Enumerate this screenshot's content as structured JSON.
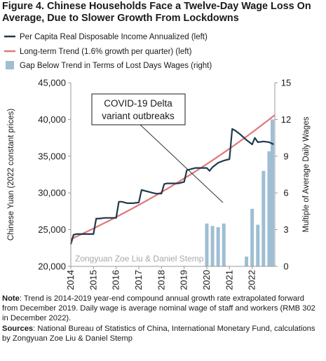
{
  "title": "Figure 4. Chinese Households Face a Twelve-Day Wage Loss On Average, Due to Slower Growth From Lockdowns",
  "chart_data": {
    "type": "line",
    "x_ticks": [
      "2014",
      "2015",
      "2016",
      "2017",
      "2018",
      "2019",
      "2020",
      "2021",
      "2022"
    ],
    "xlim": [
      2014.0,
      2023.0
    ],
    "ylabel_left": "Chinese Yuan (2022 constant prices)",
    "ylabel_right": "Multiple of Average  Daily Wages",
    "ylim_left": [
      20000,
      45000
    ],
    "ylim_right": [
      0,
      15
    ],
    "yticks_left": [
      "20,000",
      "25,000",
      "30,000",
      "35,000",
      "40,000",
      "45,000"
    ],
    "yticks_right": [
      "0",
      "3",
      "6",
      "9",
      "12",
      "15"
    ],
    "legend_position": "top-left, above plot",
    "grid": false,
    "series": [
      {
        "name": "Per Capita Real Disposable Income Annualized (left)",
        "kind": "line",
        "axis": "left",
        "color": "#1f3a4d",
        "x": [
          2014.0,
          2014.12,
          2014.25,
          2014.5,
          2014.75,
          2015.0,
          2015.12,
          2015.25,
          2015.5,
          2015.75,
          2016.0,
          2016.12,
          2016.25,
          2016.5,
          2016.75,
          2017.0,
          2017.12,
          2017.25,
          2017.5,
          2017.75,
          2018.0,
          2018.12,
          2018.25,
          2018.5,
          2018.75,
          2019.0,
          2019.12,
          2019.25,
          2019.5,
          2019.75,
          2020.0,
          2020.12,
          2020.25,
          2020.5,
          2020.75,
          2021.0,
          2021.12,
          2021.25,
          2021.5,
          2021.75,
          2022.0,
          2022.12,
          2022.25,
          2022.5,
          2022.75,
          2022.95
        ],
        "y": [
          23000,
          24300,
          24400,
          24400,
          24400,
          24400,
          26500,
          26500,
          26600,
          26600,
          26600,
          28800,
          28800,
          28600,
          28600,
          28700,
          30400,
          30300,
          30100,
          29900,
          29900,
          31200,
          31300,
          31300,
          31300,
          31500,
          33100,
          33200,
          33400,
          33400,
          33400,
          33000,
          33500,
          34100,
          34400,
          34600,
          38700,
          38500,
          37900,
          37200,
          36600,
          37500,
          36900,
          37000,
          36900,
          36600
        ]
      },
      {
        "name": "Long-term Trend (1.6% growth per quarter) (left)",
        "kind": "line",
        "axis": "left",
        "color": "#e07777",
        "x": [
          2014.0,
          2023.0
        ],
        "y": [
          23700,
          40600
        ],
        "growth": "exponential"
      },
      {
        "name": "Gap Below Trend in Terms of Lost Days Wages (right)",
        "kind": "bar",
        "axis": "right",
        "color": "#9ebed3",
        "x": [
          2020.0,
          2020.25,
          2020.5,
          2020.75,
          2021.75,
          2022.0,
          2022.25,
          2022.5,
          2022.75,
          2023.0
        ],
        "values": [
          3.5,
          3.3,
          3.2,
          3.5,
          0.8,
          4.7,
          3.4,
          7.8,
          9.4,
          12.0
        ]
      }
    ],
    "annotations": [
      {
        "text_lines": [
          "COVID-19 Delta",
          "variant outbreaks"
        ]
      },
      {
        "text": "Zongyuan Zoe Liu & Daniel Stemp"
      }
    ]
  },
  "notes": {
    "note_label": "Note",
    "note_text": ": Trend is 2014-2019 year-end compound annual growth rate extrapolated forward from December 2019. Daily wage is average nominal wage of staff and workers (RMB 302 in December 2022).",
    "sources_label": "Sources",
    "sources_text": ": National Bureau of Statistics of China, International Monetary Fund, calculations by Zongyuan Zoe Liu & Daniel Stemp"
  },
  "colors": {
    "income": "#1f3a4d",
    "trend": "#e07777",
    "gap": "#9ebed3",
    "axis": "#9a9a9a",
    "text": "#1a1a1a"
  }
}
